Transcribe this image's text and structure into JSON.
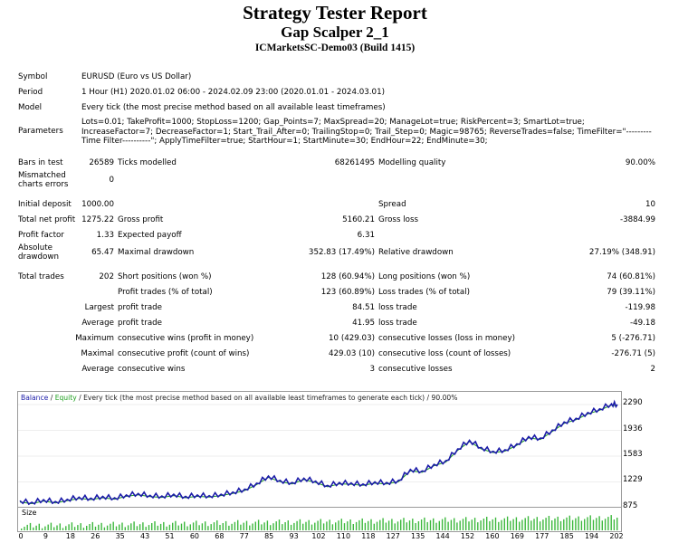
{
  "header": {
    "title": "Strategy Tester Report",
    "strategy": "Gap Scalper 2_1",
    "server": "ICMarketsSC-Demo03 (Build 1415)"
  },
  "settings": {
    "symbol_label": "Symbol",
    "symbol_value": "EURUSD (Euro vs US Dollar)",
    "period_label": "Period",
    "period_value": "1 Hour (H1) 2020.01.02 06:00 - 2024.02.09 23:00 (2020.01.01 - 2024.03.01)",
    "model_label": "Model",
    "model_value": "Every tick (the most precise method based on all available least timeframes)",
    "parameters_label": "Parameters",
    "parameters_value": "Lots=0.01; TakeProfit=1000; StopLoss=1200; Gap_Points=7; MaxSpread=20; ManageLot=true; RiskPercent=3; SmartLot=true; IncreaseFactor=7; DecreaseFactor=1; Start_Trail_After=0; TrailingStop=0; Trail_Step=0; Magic=98765; ReverseTrades=false; TimeFilter=\"---------Time Filter----------\"; ApplyTimeFilter=true; StartHour=1; StartMinute=30; EndHour=22; EndMinute=30;"
  },
  "stats": {
    "bars_label": "Bars in test",
    "bars_value": "26589",
    "ticks_label": "Ticks modelled",
    "ticks_value": "68261495",
    "quality_label": "Modelling quality",
    "quality_value": "90.00%",
    "mismatched_label": "Mismatched charts errors",
    "mismatched_value": "0",
    "deposit_label": "Initial deposit",
    "deposit_value": "1000.00",
    "spread_label": "Spread",
    "spread_value": "10",
    "netprofit_label": "Total net profit",
    "netprofit_value": "1275.22",
    "grossprofit_label": "Gross profit",
    "grossprofit_value": "5160.21",
    "grossloss_label": "Gross loss",
    "grossloss_value": "-3884.99",
    "pf_label": "Profit factor",
    "pf_value": "1.33",
    "payoff_label": "Expected payoff",
    "payoff_value": "6.31",
    "absdd_label": "Absolute drawdown",
    "absdd_value": "65.47",
    "maxdd_label": "Maximal drawdown",
    "maxdd_value": "352.83 (17.49%)",
    "reldd_label": "Relative drawdown",
    "reldd_value": "27.19% (348.91)",
    "trades_label": "Total trades",
    "trades_value": "202",
    "short_label": "Short positions (won %)",
    "short_value": "128 (60.94%)",
    "long_label": "Long positions (won %)",
    "long_value": "74 (60.81%)",
    "profit_trades_label": "Profit trades (% of total)",
    "profit_trades_value": "123 (60.89%)",
    "loss_trades_label": "Loss trades (% of total)",
    "loss_trades_value": "79 (39.11%)",
    "largest_label": "Largest",
    "largest_profit_label": "profit trade",
    "largest_profit_value": "84.51",
    "largest_loss_label": "loss trade",
    "largest_loss_value": "-119.98",
    "average_label": "Average",
    "average_profit_label": "profit trade",
    "average_profit_value": "41.95",
    "average_loss_label": "loss trade",
    "average_loss_value": "-49.18",
    "maximum_label": "Maximum",
    "max_wins_label": "consecutive wins (profit in money)",
    "max_wins_value": "10 (429.03)",
    "max_losses_label": "consecutive losses (loss in money)",
    "max_losses_value": "5 (-276.71)",
    "maximal_label": "Maximal",
    "maximal_profit_label": "consecutive profit (count of wins)",
    "maximal_profit_value": "429.03 (10)",
    "maximal_loss_label": "consecutive loss (count of losses)",
    "maximal_loss_value": "-276.71 (5)",
    "avg_consec_label": "Average",
    "avg_consec_wins_label": "consecutive wins",
    "avg_consec_wins_value": "3",
    "avg_consec_losses_label": "consecutive losses",
    "avg_consec_losses_value": "2"
  },
  "chart_caption": {
    "balance": "Balance",
    "sep": " / ",
    "equity": "Equity",
    "rest": " / Every tick (the most precise method based on all available least timeframes to generate each tick) / 90.00%"
  },
  "size_label": "Size",
  "colors": {
    "balance": "#1b1ba8",
    "equity": "#1fa01f",
    "size_bar": "#3cb83c"
  },
  "chart_data": {
    "type": "line",
    "ylim": [
      875,
      2290
    ],
    "yticks": [
      "2290",
      "1936",
      "1583",
      "1229",
      "875"
    ],
    "xticks": [
      "0",
      "9",
      "18",
      "26",
      "35",
      "43",
      "51",
      "60",
      "68",
      "77",
      "85",
      "93",
      "102",
      "110",
      "118",
      "127",
      "135",
      "144",
      "152",
      "160",
      "169",
      "177",
      "185",
      "194",
      "202"
    ],
    "x": [
      0,
      4,
      8,
      12,
      16,
      20,
      24,
      28,
      32,
      36,
      40,
      44,
      48,
      52,
      56,
      60,
      64,
      68,
      72,
      76,
      80,
      84,
      88,
      92,
      96,
      100,
      104,
      108,
      112,
      116,
      120,
      124,
      128,
      132,
      136,
      140,
      144,
      148,
      152,
      156,
      160,
      164,
      168,
      172,
      176,
      180,
      184,
      188,
      192,
      196,
      200,
      202
    ],
    "series": [
      {
        "values": [
          970,
          950,
          985,
          960,
          990,
          1020,
          1005,
          1030,
          1010,
          1050,
          1070,
          1045,
          1035,
          1060,
          1030,
          1050,
          1040,
          1060,
          1090,
          1130,
          1210,
          1310,
          1250,
          1220,
          1280,
          1240,
          1180,
          1220,
          1215,
          1200,
          1230,
          1220,
          1250,
          1400,
          1380,
          1470,
          1520,
          1680,
          1800,
          1700,
          1650,
          1670,
          1750,
          1850,
          1830,
          1940,
          2050,
          2100,
          2180,
          2230,
          2300,
          2290
        ]
      }
    ]
  }
}
